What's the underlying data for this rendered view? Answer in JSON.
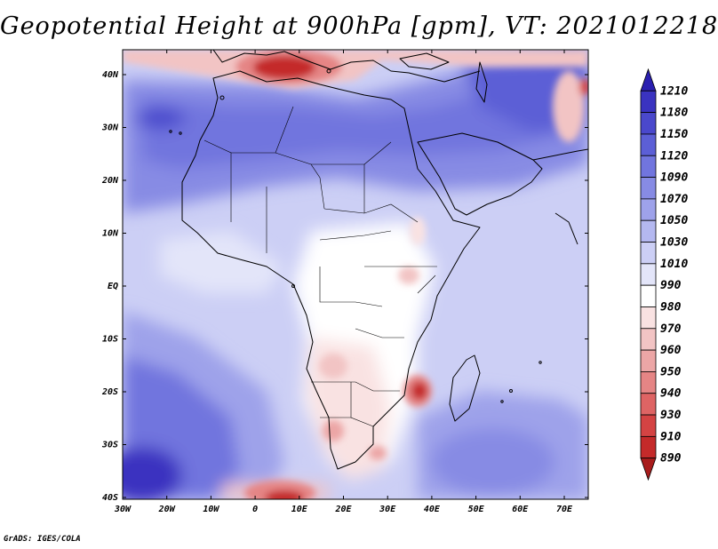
{
  "title": "Geopotential Height at 900hPa [gpm], VT: 2021012218",
  "credit": "GrADS: IGES/COLA",
  "map": {
    "region": "Africa",
    "variable": "Geopotential Height",
    "level": "900hPa",
    "units": "gpm",
    "valid_time": "2021012218",
    "lon_range": [
      -30,
      75
    ],
    "lat_range": [
      -40,
      45
    ],
    "x_ticks": [
      "30W",
      "20W",
      "10W",
      "0",
      "10E",
      "20E",
      "30E",
      "40E",
      "50E",
      "60E",
      "70E"
    ],
    "y_ticks": [
      "40N",
      "30N",
      "20N",
      "10N",
      "EQ",
      "10S",
      "20S",
      "30S",
      "40S"
    ]
  },
  "colorbar": {
    "labels": [
      "1210",
      "1180",
      "1150",
      "1120",
      "1090",
      "1070",
      "1050",
      "1030",
      "1010",
      "990",
      "980",
      "970",
      "960",
      "950",
      "940",
      "930",
      "910",
      "890"
    ],
    "colors": [
      "#2a1fb0",
      "#3a33c0",
      "#4a48cc",
      "#5c5fd6",
      "#7175de",
      "#878be4",
      "#9ea2ea",
      "#b4b8f0",
      "#cccff5",
      "#e3e5f9",
      "#ffffff",
      "#f9e2e2",
      "#f2c4c4",
      "#eca6a6",
      "#e58585",
      "#de6464",
      "#d44343",
      "#c42a2a",
      "#a81c1c"
    ]
  }
}
